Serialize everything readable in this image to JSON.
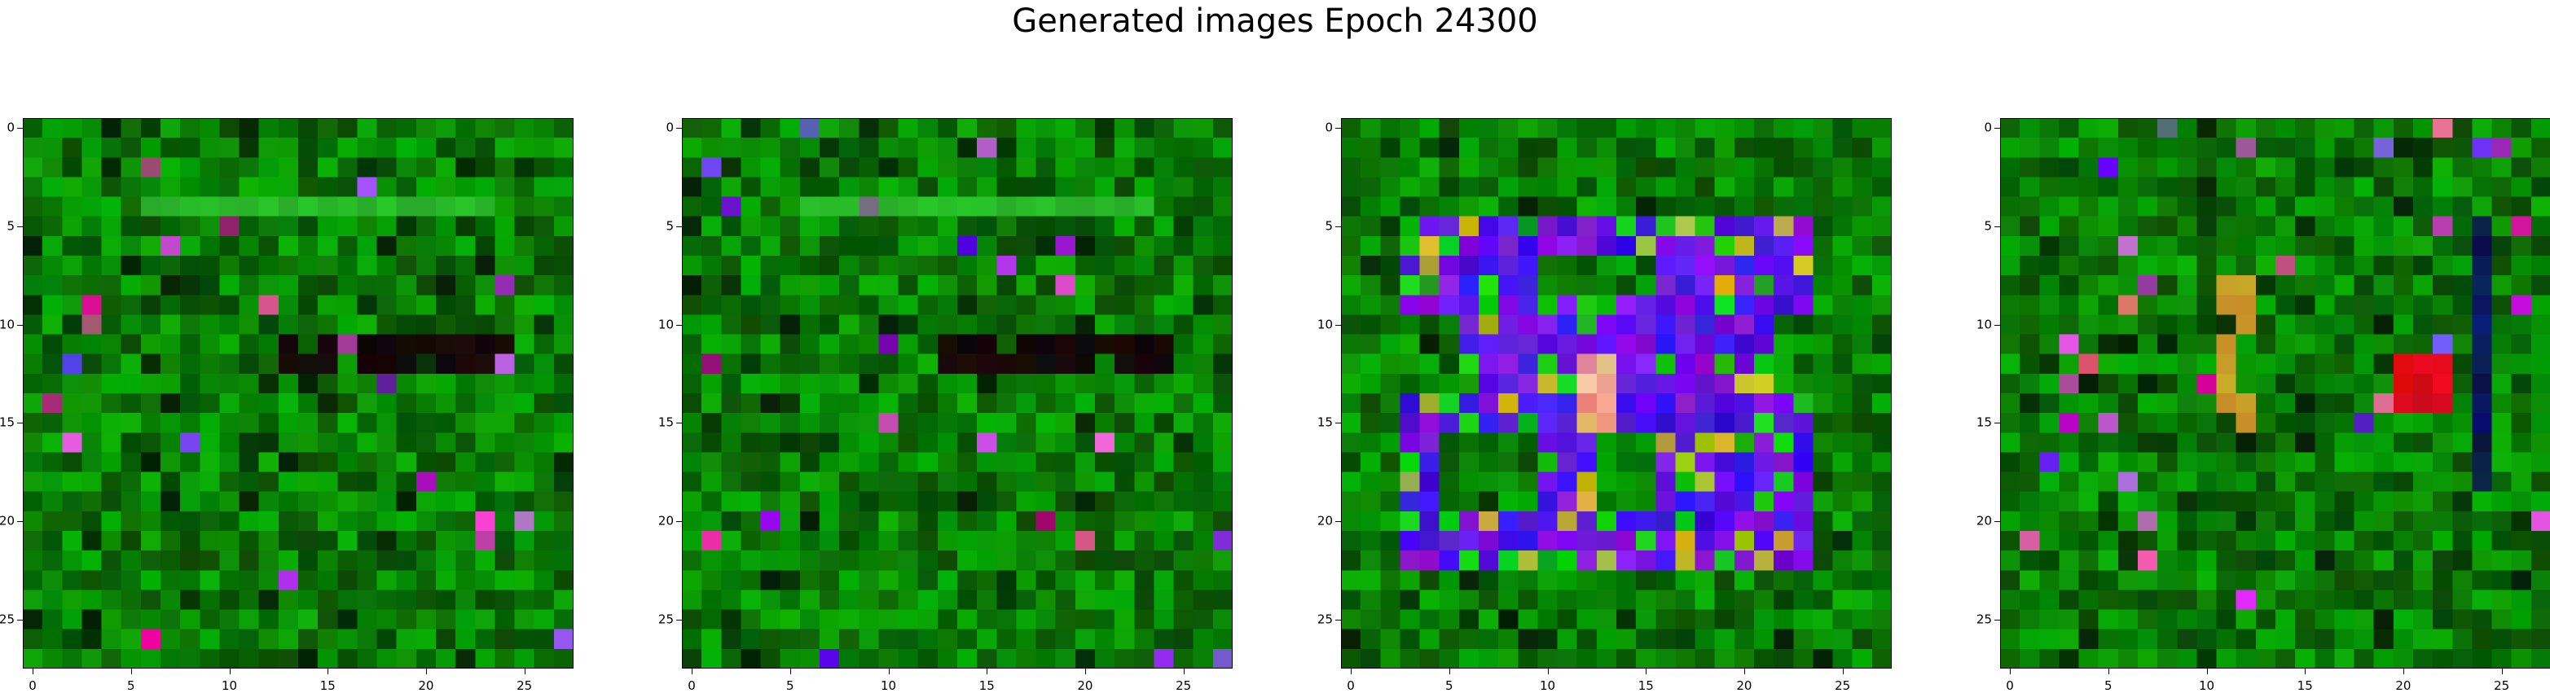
{
  "figure": {
    "title": "Generated images Epoch 24300"
  },
  "panels": [
    {
      "id": "image-1",
      "seed": 11,
      "style": "green",
      "features": "grid-1"
    },
    {
      "id": "image-2",
      "seed": 29,
      "style": "green",
      "features": "grid-2"
    },
    {
      "id": "image-3",
      "seed": 47,
      "style": "blue-eight",
      "features": "eight"
    },
    {
      "id": "image-4",
      "seed": 83,
      "style": "green",
      "features": "grid-4"
    }
  ],
  "axes": {
    "xticks": [
      "0",
      "5",
      "10",
      "15",
      "20",
      "25"
    ],
    "yticks": [
      "0",
      "5",
      "10",
      "15",
      "20",
      "25"
    ],
    "tick_values": [
      0,
      5,
      10,
      15,
      20,
      25
    ],
    "pixel_count": 28
  },
  "colors": {
    "base_green": "#0a7a0a",
    "dark_green": "#044a04",
    "bright_green": "#20b020",
    "digit_blue": "#3010f0",
    "digit_purple": "#6a20e8"
  }
}
